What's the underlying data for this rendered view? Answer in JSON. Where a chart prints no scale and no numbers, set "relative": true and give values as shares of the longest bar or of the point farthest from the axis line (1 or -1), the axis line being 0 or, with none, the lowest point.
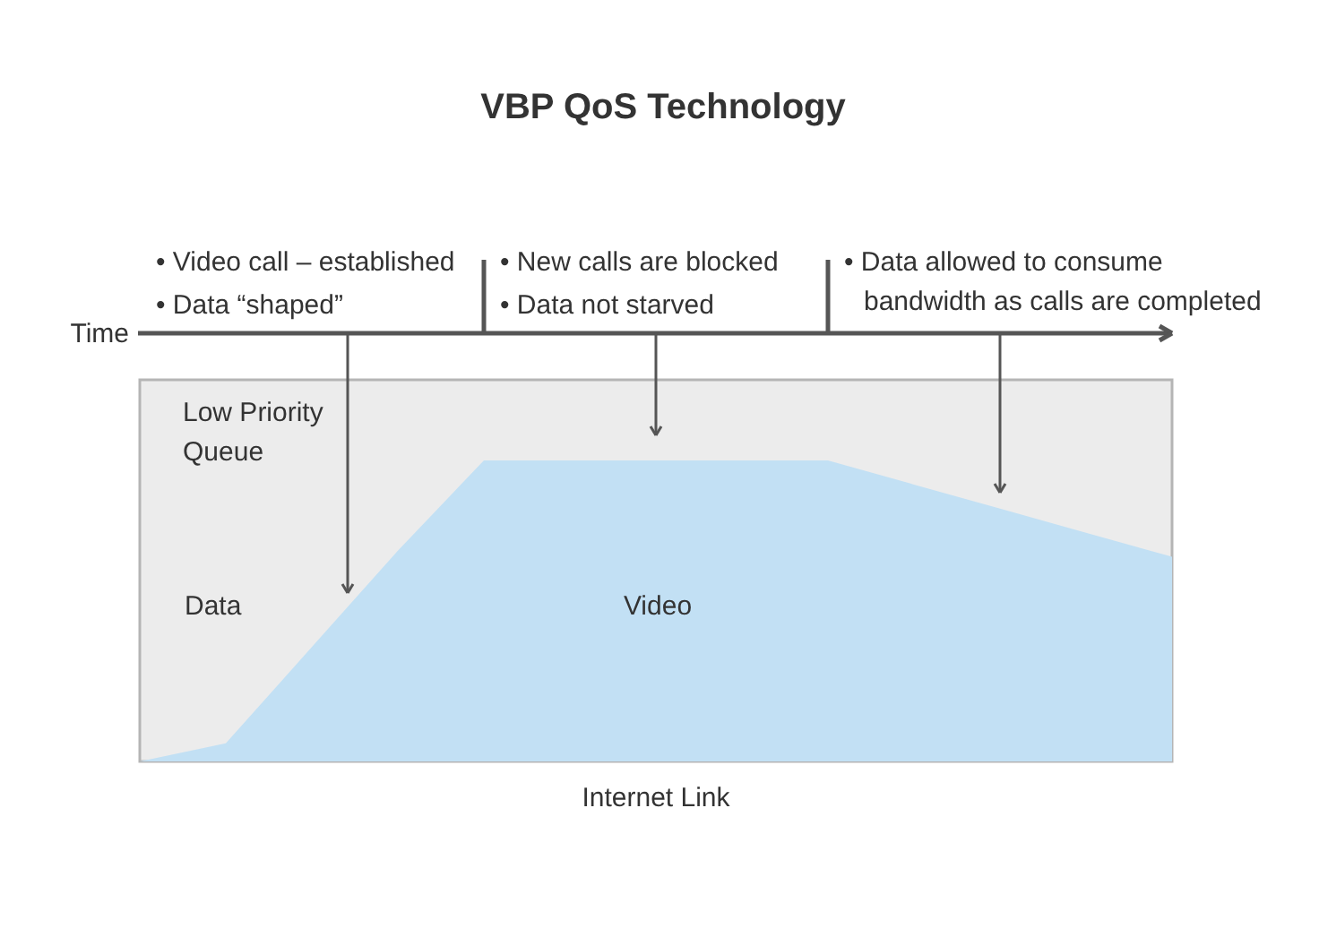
{
  "chart_data": {
    "type": "area",
    "title": "VBP QoS Technology",
    "xlabel": "Internet Link",
    "relative": true,
    "categories": [
      null,
      null,
      null,
      null,
      null,
      null,
      null,
      null,
      null,
      null,
      null,
      null,
      null
    ],
    "series": [
      {
        "name": "Video",
        "color": "#c2e0f4",
        "values": [
          0,
          0.06,
          0.38,
          0.7,
          1,
          1,
          1,
          1,
          1,
          0.92,
          0.84,
          0.76,
          0.68
        ]
      }
    ],
    "annotations": [
      "Time",
      "• Video call – established",
      "• Data “shaped”",
      "• New calls are blocked",
      "• Data not starved",
      "• Data allowed to consume bandwidth as calls are completed",
      "Low Priority Queue",
      "Data"
    ]
  }
}
